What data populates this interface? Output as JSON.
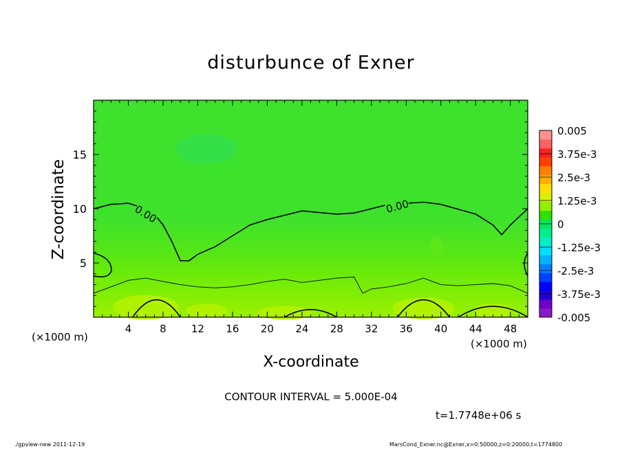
{
  "chart_data": {
    "type": "heatmap",
    "title": "disturbunce of Exner",
    "xlabel": "X-coordinate",
    "ylabel": "Z-coordinate",
    "x_unit": "(×1000 m)",
    "y_unit": "(×1000 m)",
    "xlim": [
      0,
      50
    ],
    "ylim": [
      0,
      20
    ],
    "x_ticks": [
      "4",
      "8",
      "12",
      "16",
      "20",
      "24",
      "28",
      "32",
      "36",
      "40",
      "44",
      "48"
    ],
    "y_ticks": [
      "5",
      "10",
      "15"
    ],
    "colorbar": {
      "min": -0.005,
      "max": 0.005,
      "levels": [
        "0.005",
        "3.75e-3",
        "2.5e-3",
        "1.25e-3",
        "0",
        "-1.25e-3",
        "-2.5e-3",
        "-3.75e-3",
        "-0.005"
      ],
      "colors": [
        "#8b1ac6",
        "#7000c8",
        "#2000d8",
        "#0000ff",
        "#0040ff",
        "#0080ff",
        "#00b4ff",
        "#00e0ff",
        "#00f0c8",
        "#00f090",
        "#00e860",
        "#30e000",
        "#90f000",
        "#d8f000",
        "#ffe000",
        "#ffb000",
        "#ff8000",
        "#ff4000",
        "#ff2020",
        "#ff6060",
        "#ff9090"
      ]
    },
    "contour_labels": [
      "0.00",
      "0.00"
    ],
    "contour_zero_line": {
      "x": [
        0,
        2,
        4,
        6,
        7,
        8,
        9,
        10,
        11,
        12,
        14,
        16,
        18,
        20,
        24,
        28,
        30,
        32,
        34,
        36,
        38,
        40,
        44,
        46,
        47,
        48,
        50
      ],
      "z": [
        10.0,
        10.4,
        10.5,
        10.0,
        9.5,
        8.5,
        7.0,
        5.2,
        5.2,
        5.8,
        6.5,
        7.5,
        8.5,
        9.0,
        9.8,
        9.5,
        9.6,
        10.0,
        10.4,
        10.5,
        10.6,
        10.4,
        9.5,
        8.5,
        7.6,
        8.5,
        10.0
      ]
    },
    "contour_lower_line": {
      "x": [
        0,
        2,
        4,
        6,
        8,
        10,
        12,
        14,
        16,
        18,
        20,
        22,
        24,
        26,
        28,
        30,
        31,
        32,
        34,
        36,
        38,
        40,
        42,
        44,
        46,
        48,
        50
      ],
      "z": [
        2.2,
        2.8,
        3.4,
        3.6,
        3.3,
        3.0,
        2.8,
        2.7,
        2.8,
        3.0,
        3.3,
        3.5,
        3.2,
        3.4,
        3.6,
        3.7,
        2.2,
        2.6,
        2.8,
        3.1,
        3.6,
        3.0,
        2.9,
        3.0,
        3.1,
        2.9,
        2.2
      ]
    }
  },
  "contour_interval_text": "CONTOUR INTERVAL = 5.000E-04",
  "time_text": "t=1.7748e+06 s",
  "footer_left": "./gpview-new   2011-12-19",
  "footer_right": "MarsCond_Exner.nc@Exner,x=0:50000,z=0:20000,t=1774800"
}
